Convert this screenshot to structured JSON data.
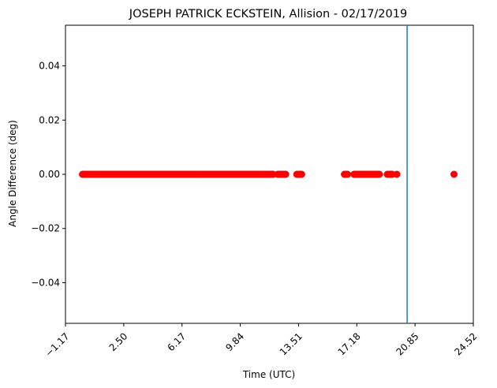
{
  "chart_data": {
    "type": "scatter",
    "title": "JOSEPH PATRICK ECKSTEIN, Allision - 02/17/2019",
    "xlabel": "Time (UTC)",
    "ylabel": "Angle Difference (deg)",
    "xlim": [
      -1.17,
      24.52
    ],
    "ylim": [
      -0.055,
      0.055
    ],
    "x_ticks": [
      -1.17,
      2.5,
      6.17,
      9.84,
      13.51,
      17.18,
      20.85,
      24.52
    ],
    "x_tick_labels": [
      "−1.17",
      "2.50",
      "6.17",
      "9.84",
      "13.51",
      "17.18",
      "20.85",
      "24.52"
    ],
    "y_ticks": [
      -0.04,
      -0.02,
      0.0,
      0.02,
      0.04
    ],
    "y_tick_labels": [
      "−0.04",
      "−0.02",
      "0.00",
      "0.02",
      "0.04"
    ],
    "x_tick_rotation": 45,
    "grid": false,
    "legend": "none",
    "marker_color": "#ff0000",
    "vline_color": "#1f77b4",
    "vline_x": 20.35,
    "point_segments": [
      {
        "start": -0.1,
        "end": 11.9,
        "y": 0.0
      },
      {
        "start": 12.2,
        "end": 12.7,
        "y": 0.0
      },
      {
        "start": 13.4,
        "end": 13.7,
        "y": 0.0
      },
      {
        "start": 16.4,
        "end": 16.6,
        "y": 0.0
      },
      {
        "start": 17.0,
        "end": 17.2,
        "y": 0.0
      },
      {
        "start": 17.3,
        "end": 18.6,
        "y": 0.0
      },
      {
        "start": 19.1,
        "end": 19.4,
        "y": 0.0
      }
    ],
    "points": [
      {
        "x": 19.7,
        "y": 0.0
      },
      {
        "x": 23.3,
        "y": 0.0
      }
    ]
  }
}
